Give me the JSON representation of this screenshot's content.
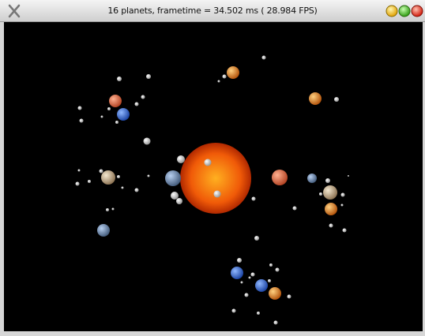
{
  "window": {
    "title": "16 planets, frametime = 34.502 ms ( 28.984 FPS)"
  }
}
